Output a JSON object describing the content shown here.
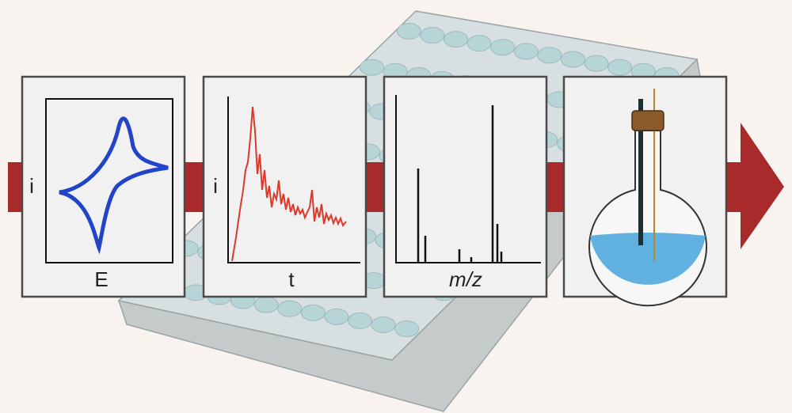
{
  "panels": [
    {
      "y_label": "i",
      "x_label": "E"
    },
    {
      "y_label": "i",
      "x_label": "t"
    },
    {
      "x_label": "m/z"
    }
  ]
}
